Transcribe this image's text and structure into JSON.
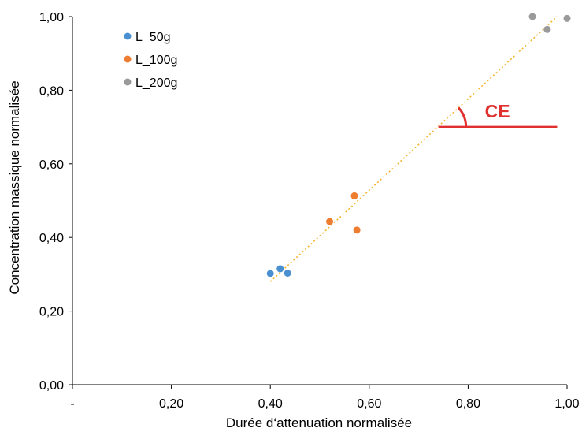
{
  "chart_data": {
    "type": "scatter",
    "title": "",
    "xlabel": "Durée d‘attenuation normalisée",
    "ylabel": "Concentration massique normalisée",
    "xlim": [
      0,
      1
    ],
    "ylim": [
      0,
      1
    ],
    "x_ticks": [
      {
        "value": 0,
        "label": "-"
      },
      {
        "value": 0.2,
        "label": "0,20"
      },
      {
        "value": 0.4,
        "label": "0,40"
      },
      {
        "value": 0.6,
        "label": "0,60"
      },
      {
        "value": 0.8,
        "label": "0,80"
      },
      {
        "value": 1.0,
        "label": "1,00"
      }
    ],
    "y_ticks": [
      {
        "value": 0,
        "label": "0,00"
      },
      {
        "value": 0.2,
        "label": "0,20"
      },
      {
        "value": 0.4,
        "label": "0,40"
      },
      {
        "value": 0.6,
        "label": "0,60"
      },
      {
        "value": 0.8,
        "label": "0,80"
      },
      {
        "value": 1.0,
        "label": "1,00"
      }
    ],
    "grid": false,
    "legend_position": "top-left",
    "series": [
      {
        "name": "L_50g",
        "color": "#4a90d0",
        "points": [
          {
            "x": 0.4,
            "y": 0.302
          },
          {
            "x": 0.42,
            "y": 0.315
          },
          {
            "x": 0.435,
            "y": 0.303
          }
        ]
      },
      {
        "name": "L_100g",
        "color": "#ed7d31",
        "points": [
          {
            "x": 0.52,
            "y": 0.443
          },
          {
            "x": 0.57,
            "y": 0.513
          },
          {
            "x": 0.575,
            "y": 0.42
          }
        ]
      },
      {
        "name": "L_200g",
        "color": "#9a9a9a",
        "points": [
          {
            "x": 0.93,
            "y": 1.0
          },
          {
            "x": 0.96,
            "y": 0.965
          },
          {
            "x": 1.0,
            "y": 0.995
          }
        ]
      }
    ],
    "trendline": {
      "color": "#f5b630",
      "style": "dotted",
      "start": {
        "x": 0.4,
        "y": 0.28
      },
      "end": {
        "x": 0.98,
        "y": 1.0
      }
    },
    "annotation": {
      "label": "CE",
      "color": "#e03030",
      "baseline_start": {
        "x": 0.74,
        "y": 0.7
      },
      "baseline_end": {
        "x": 0.98,
        "y": 0.7
      }
    }
  }
}
